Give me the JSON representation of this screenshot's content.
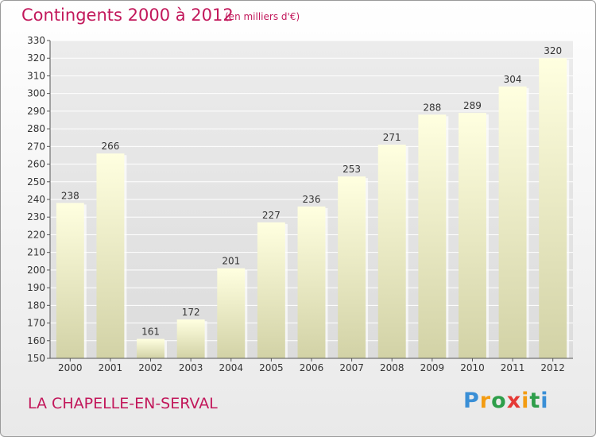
{
  "header": {
    "title": "Contingents 2000 à 2012",
    "subtitle": "(en milliers d'€)"
  },
  "footer": {
    "location": "LA CHAPELLE-EN-SERVAL",
    "logo": "Proxiti"
  },
  "colors": {
    "title": "#c2185b",
    "bar_top": "#ffffe0",
    "bar_bottom": "#d2d2a6",
    "grid": "#ffffff"
  },
  "chart_data": {
    "type": "bar",
    "title": "Contingents 2000 à 2012",
    "subtitle": "(en milliers d'€)",
    "xlabel": "",
    "ylabel": "",
    "categories": [
      "2000",
      "2001",
      "2002",
      "2003",
      "2004",
      "2005",
      "2006",
      "2007",
      "2008",
      "2009",
      "2010",
      "2011",
      "2012"
    ],
    "values": [
      238,
      266,
      161,
      172,
      201,
      227,
      236,
      253,
      271,
      288,
      289,
      304,
      320
    ],
    "ylim": [
      150,
      330
    ],
    "yticks": [
      150,
      160,
      170,
      180,
      190,
      200,
      210,
      220,
      230,
      240,
      250,
      260,
      270,
      280,
      290,
      300,
      310,
      320,
      330
    ],
    "grid": true,
    "data_labels": true
  }
}
